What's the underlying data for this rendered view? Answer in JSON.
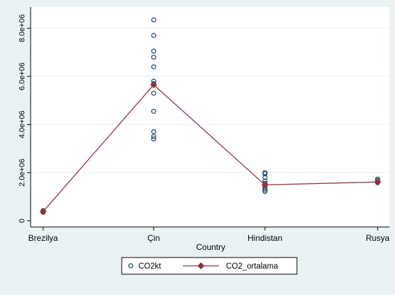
{
  "chart_data": {
    "type": "scatter",
    "xlabel": "Country",
    "ylabel": "",
    "categories": [
      "Brezilya",
      "Çin",
      "Hindistan",
      "Rusya"
    ],
    "y_ticks": [
      0,
      2000000,
      4000000,
      6000000,
      8000000
    ],
    "y_tick_labels": [
      "0",
      "2.0e+06",
      "4.0e+06",
      "6.0e+06",
      "8.0e+06"
    ],
    "ylim": [
      0,
      8800000
    ],
    "grid": true,
    "legend_position": "bottom",
    "series": [
      {
        "name": "CO2kt",
        "kind": "scatter",
        "marker": "hollow-circle",
        "color": "#1a476f",
        "points": [
          {
            "x": "Brezilya",
            "y": 350000
          },
          {
            "x": "Brezilya",
            "y": 380000
          },
          {
            "x": "Brezilya",
            "y": 400000
          },
          {
            "x": "Brezilya",
            "y": 420000
          },
          {
            "x": "Çin",
            "y": 8350000
          },
          {
            "x": "Çin",
            "y": 7700000
          },
          {
            "x": "Çin",
            "y": 7050000
          },
          {
            "x": "Çin",
            "y": 6800000
          },
          {
            "x": "Çin",
            "y": 6400000
          },
          {
            "x": "Çin",
            "y": 5800000
          },
          {
            "x": "Çin",
            "y": 5700000
          },
          {
            "x": "Çin",
            "y": 5300000
          },
          {
            "x": "Çin",
            "y": 4550000
          },
          {
            "x": "Çin",
            "y": 3700000
          },
          {
            "x": "Çin",
            "y": 3500000
          },
          {
            "x": "Çin",
            "y": 3400000
          },
          {
            "x": "Hindistan",
            "y": 2000000
          },
          {
            "x": "Hindistan",
            "y": 1950000
          },
          {
            "x": "Hindistan",
            "y": 1800000
          },
          {
            "x": "Hindistan",
            "y": 1650000
          },
          {
            "x": "Hindistan",
            "y": 1550000
          },
          {
            "x": "Hindistan",
            "y": 1450000
          },
          {
            "x": "Hindistan",
            "y": 1350000
          },
          {
            "x": "Hindistan",
            "y": 1280000
          },
          {
            "x": "Hindistan",
            "y": 1220000
          },
          {
            "x": "Rusya",
            "y": 1730000
          },
          {
            "x": "Rusya",
            "y": 1680000
          },
          {
            "x": "Rusya",
            "y": 1620000
          },
          {
            "x": "Rusya",
            "y": 1580000
          }
        ]
      },
      {
        "name": "CO2_ortalama",
        "kind": "connected",
        "marker": "filled-diamond",
        "color": "#90353b",
        "categories": [
          "Brezilya",
          "Çin",
          "Hindistan",
          "Rusya"
        ],
        "values": [
          380000,
          5650000,
          1490000,
          1610000
        ]
      }
    ]
  }
}
